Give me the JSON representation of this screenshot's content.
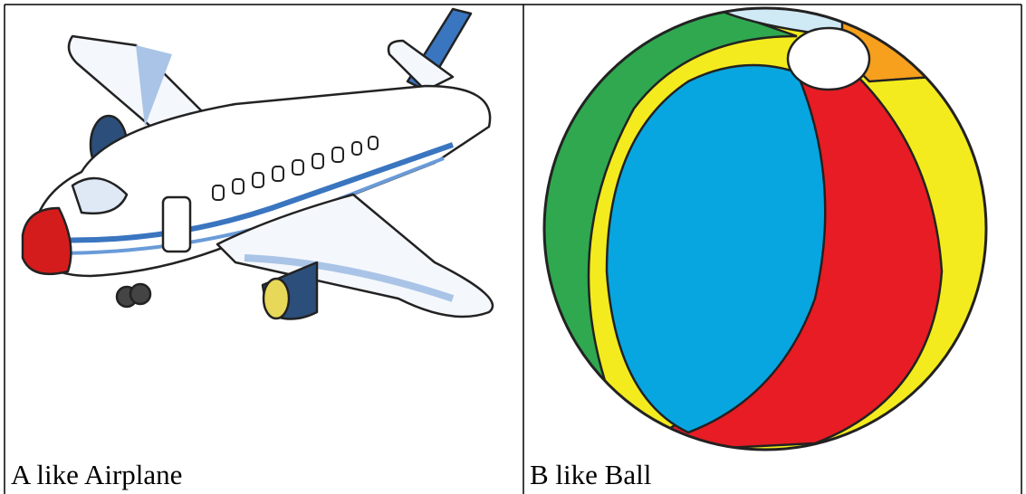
{
  "table": {
    "rows": [
      [
        "A like Airplane",
        "B like Ball"
      ]
    ]
  }
}
